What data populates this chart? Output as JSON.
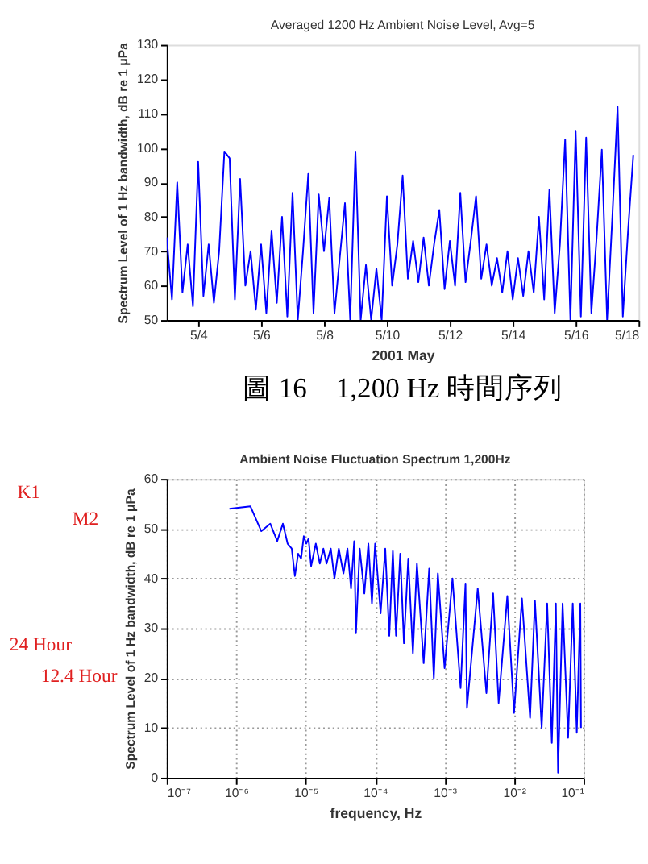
{
  "chart_data": [
    {
      "type": "line",
      "title": "Averaged 1200 Hz Ambient Noise Level, Avg=5",
      "xlabel": "2001 May",
      "ylabel": "Spectrum Level of 1 Hz bandwidth, dB re 1 μPa",
      "annotations": [
        "圖 16　1,200 Hz 時間序列"
      ],
      "xlim": [
        "2001-05-03T00:00",
        "2001-05-18T00:00"
      ],
      "ylim": [
        50,
        130
      ],
      "xticks": [
        {
          "value": "2001-05-04T00:00",
          "label": "5/4"
        },
        {
          "value": "2001-05-06T00:00",
          "label": "5/6"
        },
        {
          "value": "2001-05-08T00:00",
          "label": "5/8"
        },
        {
          "value": "2001-05-10T00:00",
          "label": "5/10"
        },
        {
          "value": "2001-05-12T00:00",
          "label": "5/12"
        },
        {
          "value": "2001-05-14T00:00",
          "label": "5/14"
        },
        {
          "value": "2001-05-16T00:00",
          "label": "5/16"
        },
        {
          "value": "2001-05-18T00:00",
          "label": "5/18"
        }
      ],
      "yticks": [
        50,
        60,
        70,
        80,
        90,
        100,
        110,
        120,
        130
      ],
      "grid": false,
      "x": [
        "2001-05-03T00:00",
        "2001-05-03T04:00",
        "2001-05-03T08:00",
        "2001-05-03T12:00",
        "2001-05-03T16:00",
        "2001-05-03T20:00",
        "2001-05-04T00:00",
        "2001-05-04T04:00",
        "2001-05-04T08:00",
        "2001-05-04T12:00",
        "2001-05-04T16:00",
        "2001-05-04T20:00",
        "2001-05-05T00:00",
        "2001-05-05T04:00",
        "2001-05-05T08:00",
        "2001-05-05T12:00",
        "2001-05-05T16:00",
        "2001-05-05T20:00",
        "2001-05-06T00:00",
        "2001-05-06T04:00",
        "2001-05-06T08:00",
        "2001-05-06T12:00",
        "2001-05-06T16:00",
        "2001-05-06T20:00",
        "2001-05-07T00:00",
        "2001-05-07T04:00",
        "2001-05-07T08:00",
        "2001-05-07T12:00",
        "2001-05-07T16:00",
        "2001-05-07T20:00",
        "2001-05-08T00:00",
        "2001-05-08T04:00",
        "2001-05-08T08:00",
        "2001-05-08T12:00",
        "2001-05-08T16:00",
        "2001-05-08T20:00",
        "2001-05-09T00:00",
        "2001-05-09T04:00",
        "2001-05-09T08:00",
        "2001-05-09T12:00",
        "2001-05-09T16:00",
        "2001-05-09T20:00",
        "2001-05-10T00:00",
        "2001-05-10T04:00",
        "2001-05-10T08:00",
        "2001-05-10T12:00",
        "2001-05-10T16:00",
        "2001-05-10T20:00",
        "2001-05-11T00:00",
        "2001-05-11T04:00",
        "2001-05-11T08:00",
        "2001-05-11T12:00",
        "2001-05-11T16:00",
        "2001-05-11T20:00",
        "2001-05-12T00:00",
        "2001-05-12T04:00",
        "2001-05-12T08:00",
        "2001-05-12T12:00",
        "2001-05-12T16:00",
        "2001-05-12T20:00",
        "2001-05-13T00:00",
        "2001-05-13T04:00",
        "2001-05-13T08:00",
        "2001-05-13T12:00",
        "2001-05-13T16:00",
        "2001-05-13T20:00",
        "2001-05-14T00:00",
        "2001-05-14T04:00",
        "2001-05-14T08:00",
        "2001-05-14T12:00",
        "2001-05-14T16:00",
        "2001-05-14T20:00",
        "2001-05-15T00:00",
        "2001-05-15T04:00",
        "2001-05-15T08:00",
        "2001-05-15T12:00",
        "2001-05-15T16:00",
        "2001-05-15T20:00",
        "2001-05-16T00:00",
        "2001-05-16T04:00",
        "2001-05-16T08:00",
        "2001-05-16T12:00",
        "2001-05-16T16:00",
        "2001-05-16T20:00",
        "2001-05-17T00:00",
        "2001-05-17T04:00",
        "2001-05-17T08:00",
        "2001-05-17T12:00",
        "2001-05-17T16:00",
        "2001-05-17T20:00"
      ],
      "series": [
        {
          "color": "#0000ff",
          "values": [
            74,
            56,
            90,
            58,
            72,
            54,
            96,
            57,
            72,
            55,
            70,
            99,
            97,
            56,
            91,
            60,
            70,
            53,
            72,
            52,
            76,
            55,
            80,
            51,
            87,
            50,
            70,
            92.5,
            52,
            86.5,
            70,
            85.5,
            52,
            68,
            84,
            50,
            99,
            50,
            66,
            50,
            65,
            50,
            86,
            60,
            72,
            92,
            62,
            73,
            61,
            74,
            60,
            72,
            82,
            59,
            73,
            60,
            87,
            61,
            73,
            86,
            62,
            72,
            60,
            68,
            58,
            70,
            56,
            68,
            57,
            70,
            58,
            80,
            56,
            88,
            52,
            72,
            102.5,
            50,
            105,
            51,
            103,
            52,
            74,
            99.5,
            50,
            80,
            112,
            51,
            76,
            98
          ]
        }
      ]
    },
    {
      "type": "line",
      "title": "Ambient Noise Fluctuation Spectrum 1,200Hz",
      "xlabel": "frequency, Hz",
      "ylabel": "Spectrum Level of 1 Hz bandwidth, dB re 1 μPa",
      "annotations": [
        "K1",
        "M2",
        "24 Hour",
        "12.4 Hour"
      ],
      "log": "x",
      "xlim": [
        1e-07,
        0.1
      ],
      "ylim": [
        0,
        60
      ],
      "xticks": [
        {
          "value": 1e-07,
          "label": "10⁻⁷"
        },
        {
          "value": 1e-06,
          "label": "10⁻⁶"
        },
        {
          "value": 1e-05,
          "label": "10⁻⁵"
        },
        {
          "value": 0.0001,
          "label": "10⁻⁴"
        },
        {
          "value": 0.001,
          "label": "10⁻³"
        },
        {
          "value": 0.01,
          "label": "10⁻²"
        },
        {
          "value": 0.1,
          "label": "10⁻¹"
        }
      ],
      "yticks": [
        0,
        10,
        20,
        30,
        40,
        50,
        60
      ],
      "grid": true,
      "x": [
        8e-07,
        1.6e-06,
        2.3e-06,
        3.1e-06,
        3.9e-06,
        4.7e-06,
        5.5e-06,
        6.3e-06,
        7e-06,
        7.8e-06,
        8.6e-06,
        9.4e-06,
        1.02e-05,
        1.1e-05,
        1.2e-05,
        1.4e-05,
        1.6e-05,
        1.8e-05,
        2e-05,
        2.3e-05,
        2.6e-05,
        3e-05,
        3.5e-05,
        4e-05,
        4.5e-05,
        5e-05,
        5.3e-05,
        6e-05,
        7e-05,
        8e-05,
        9e-05,
        0.0001,
        0.00012,
        0.00014,
        0.00016,
        0.00018,
        0.0002,
        0.00023,
        0.00026,
        0.0003,
        0.00035,
        0.0004,
        0.0005,
        0.0006,
        0.0007,
        0.0008,
        0.001,
        0.0013,
        0.0017,
        0.002,
        0.0021,
        0.003,
        0.004,
        0.005,
        0.006,
        0.008,
        0.01,
        0.013,
        0.017,
        0.02,
        0.025,
        0.03,
        0.035,
        0.04,
        0.043,
        0.05,
        0.06,
        0.07,
        0.08,
        0.09,
        0.092
      ],
      "series": [
        {
          "color": "#0000ff",
          "values": [
            54,
            54.5,
            49.5,
            51,
            47.5,
            51,
            47,
            46,
            40.5,
            45,
            44,
            48.5,
            47,
            48,
            42.5,
            47,
            43,
            46,
            43,
            46,
            40,
            46,
            41,
            46,
            38,
            47.5,
            29,
            46,
            37,
            47,
            35,
            47,
            33,
            46,
            28.5,
            45.5,
            28.5,
            45,
            27,
            44,
            25,
            43,
            23,
            42,
            20,
            41,
            22,
            40,
            18,
            39,
            14,
            38,
            17,
            37,
            15,
            36.5,
            13,
            36,
            12,
            35.5,
            10,
            35,
            7,
            35,
            1,
            35,
            8,
            35,
            9,
            35,
            10
          ]
        }
      ]
    }
  ]
}
